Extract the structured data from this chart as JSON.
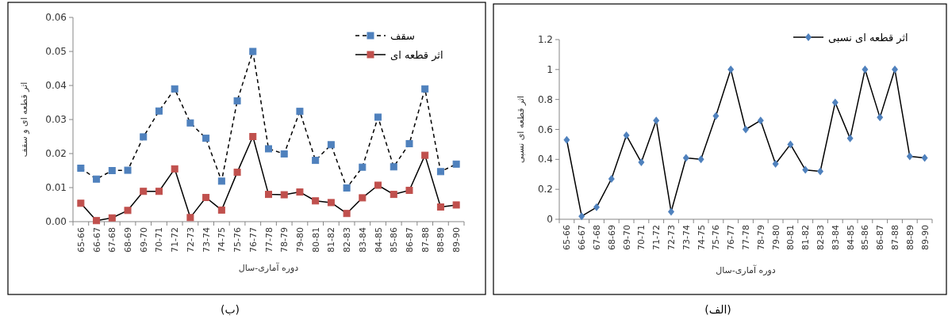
{
  "chart_data": [
    {
      "type": "line",
      "categories": [
        "65-66",
        "66-67",
        "67-68",
        "68-69",
        "69-70",
        "70-71",
        "71-72",
        "72-73",
        "73-74",
        "74-75",
        "75-76",
        "76-77",
        "77-78",
        "78-79",
        "79-80",
        "80-81",
        "81-82",
        "82-83",
        "83-84",
        "84-85",
        "85-86",
        "86-87",
        "87-88",
        "88-89",
        "89-90"
      ],
      "series": [
        {
          "name": "سقف",
          "color": "#4f81bd",
          "marker": "square",
          "line_style": "dashed",
          "values": [
            0.0157,
            0.0125,
            0.015,
            0.0151,
            0.0249,
            0.0325,
            0.039,
            0.029,
            0.0245,
            0.0119,
            0.0355,
            0.05,
            0.0214,
            0.0199,
            0.0324,
            0.018,
            0.0226,
            0.0099,
            0.016,
            0.0307,
            0.0161,
            0.0229,
            0.039,
            0.0147,
            0.0169
          ]
        },
        {
          "name": "اثر قطعه ای",
          "color": "#c0504d",
          "marker": "square",
          "line_style": "solid",
          "values": [
            0.0054,
            0.0003,
            0.0011,
            0.0033,
            0.0089,
            0.0089,
            0.0155,
            0.0012,
            0.0071,
            0.0034,
            0.0145,
            0.025,
            0.008,
            0.0079,
            0.0087,
            0.0061,
            0.0056,
            0.0024,
            0.007,
            0.0107,
            0.008,
            0.0092,
            0.0195,
            0.0043,
            0.0049
          ]
        }
      ],
      "ylim": [
        0,
        0.06
      ],
      "yticks": [
        {
          "value": 0,
          "label": "0.00"
        },
        {
          "value": 0.01,
          "label": "0.01"
        },
        {
          "value": 0.02,
          "label": "0.02"
        },
        {
          "value": 0.03,
          "label": "0.03"
        },
        {
          "value": 0.04,
          "label": "0.04"
        },
        {
          "value": 0.05,
          "label": "0.05"
        },
        {
          "value": 0.06,
          "label": "0.06"
        }
      ],
      "ylabel": "اثر قطعه ای و سقف",
      "xlabel": "دوره آماری-سال",
      "legend": "top right",
      "grid": false,
      "annotations": [
        "(ب)"
      ]
    },
    {
      "type": "line",
      "categories": [
        "65-66",
        "66-67",
        "67-68",
        "68-69",
        "69-70",
        "70-71",
        "71-72",
        "72-73",
        "73-74",
        "74-75",
        "75-76",
        "76-77",
        "77-78",
        "78-79",
        "79-80",
        "80-81",
        "81-82",
        "82-83",
        "83-84",
        "84-85",
        "85-86",
        "86-87",
        "87-88",
        "88-89",
        "89-90"
      ],
      "series": [
        {
          "name": "اثر قطعه ای نسبی",
          "color": "#4f81bd",
          "marker": "diamond",
          "line_style": "solid",
          "values": [
            0.53,
            0.02,
            0.08,
            0.27,
            0.56,
            0.38,
            0.66,
            0.05,
            0.41,
            0.4,
            0.69,
            1,
            0.6,
            0.66,
            0.37,
            0.5,
            0.33,
            0.32,
            0.78,
            0.54,
            1,
            0.68,
            1,
            0.42,
            0.41
          ]
        }
      ],
      "ylim": [
        0,
        1.2
      ],
      "yticks": [
        0,
        0.2,
        0.4,
        0.6,
        0.8,
        1,
        1.2
      ],
      "ylabel": "اثر قطعه ای نسبی",
      "xlabel": "دوره آماری-سال",
      "legend": "top right",
      "grid": false,
      "annotations": [
        "(الف)"
      ]
    }
  ]
}
